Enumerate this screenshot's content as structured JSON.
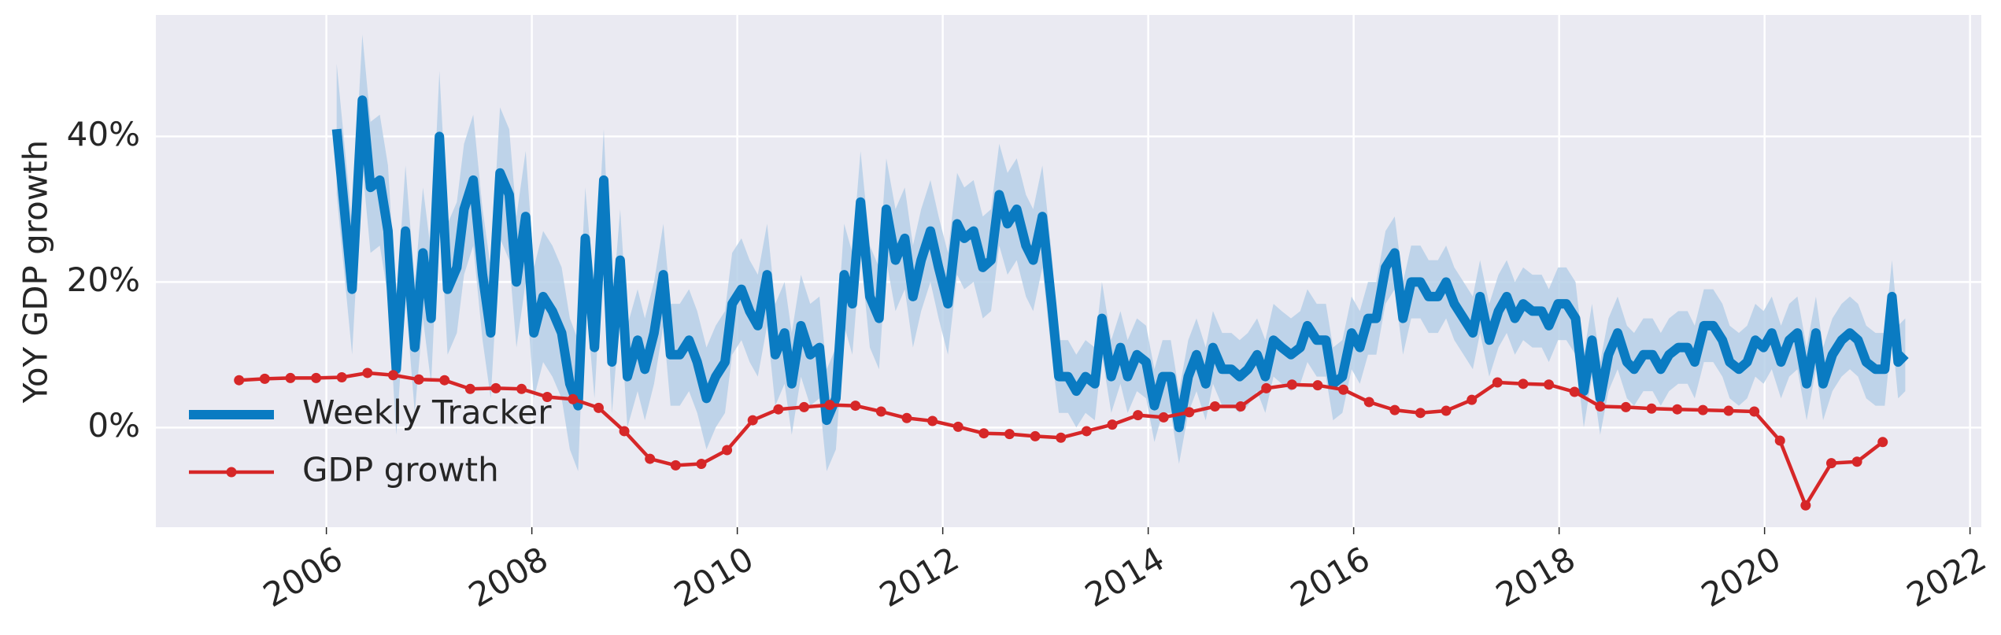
{
  "chart_data": {
    "type": "line",
    "ylabel": "YoY GDP growth",
    "xlim": [
      2004.34,
      2022.11
    ],
    "ylim": [
      -13.7,
      56.7
    ],
    "xticks": [
      2006,
      2008,
      2010,
      2012,
      2014,
      2016,
      2018,
      2020,
      2022
    ],
    "yticks": [
      {
        "value": 0,
        "label": "0%"
      },
      {
        "value": 20,
        "label": "20%"
      },
      {
        "value": 40,
        "label": "40%"
      }
    ],
    "grid": true,
    "legend": "lower left",
    "series": [
      {
        "name": "Weekly Tracker",
        "color": "#0a7bc2",
        "band_color": "#b3cde6",
        "x": [
          2006.1,
          2006.25,
          2006.35,
          2006.43,
          2006.52,
          2006.6,
          2006.68,
          2006.77,
          2006.86,
          2006.94,
          2007.02,
          2007.1,
          2007.18,
          2007.27,
          2007.34,
          2007.43,
          2007.52,
          2007.6,
          2007.69,
          2007.78,
          2007.85,
          2007.94,
          2008.02,
          2008.11,
          2008.2,
          2008.29,
          2008.37,
          2008.45,
          2008.52,
          2008.61,
          2008.7,
          2008.78,
          2008.86,
          2008.93,
          2009.03,
          2009.1,
          2009.19,
          2009.28,
          2009.35,
          2009.44,
          2009.53,
          2009.61,
          2009.7,
          2009.79,
          2009.88,
          2009.95,
          2010.04,
          2010.12,
          2010.2,
          2010.29,
          2010.37,
          2010.46,
          2010.53,
          2010.62,
          2010.71,
          2010.8,
          2010.87,
          2010.96,
          2011.04,
          2011.12,
          2011.2,
          2011.29,
          2011.38,
          2011.45,
          2011.54,
          2011.63,
          2011.71,
          2011.79,
          2011.88,
          2011.96,
          2012.05,
          2012.14,
          2012.21,
          2012.3,
          2012.39,
          2012.47,
          2012.55,
          2012.63,
          2012.72,
          2012.81,
          2012.88,
          2012.97,
          2013.06,
          2013.13,
          2013.22,
          2013.3,
          2013.39,
          2013.48,
          2013.55,
          2013.64,
          2013.73,
          2013.8,
          2013.89,
          2013.98,
          2014.06,
          2014.14,
          2014.22,
          2014.3,
          2014.39,
          2014.47,
          2014.56,
          2014.63,
          2014.72,
          2014.81,
          2014.89,
          2014.97,
          2015.06,
          2015.14,
          2015.22,
          2015.3,
          2015.39,
          2015.48,
          2015.55,
          2015.64,
          2015.73,
          2015.8,
          2015.89,
          2015.98,
          2016.06,
          2016.14,
          2016.22,
          2016.31,
          2016.4,
          2016.48,
          2016.56,
          2016.65,
          2016.73,
          2016.82,
          2016.9,
          2016.98,
          2017.07,
          2017.16,
          2017.23,
          2017.32,
          2017.41,
          2017.49,
          2017.57,
          2017.65,
          2017.74,
          2017.83,
          2017.9,
          2017.99,
          2018.07,
          2018.16,
          2018.24,
          2018.32,
          2018.4,
          2018.48,
          2018.57,
          2018.66,
          2018.73,
          2018.82,
          2018.91,
          2018.99,
          2019.07,
          2019.16,
          2019.25,
          2019.32,
          2019.41,
          2019.5,
          2019.59,
          2019.66,
          2019.75,
          2019.83,
          2019.91,
          2019.99,
          2020.07,
          2020.16,
          2020.24,
          2020.32,
          2020.41,
          2020.5,
          2020.57,
          2020.66,
          2020.75,
          2020.83,
          2020.91,
          2020.99,
          2021.08,
          2021.17,
          2021.24,
          2021.3,
          2021.37
        ],
        "values": [
          41,
          19,
          45,
          33,
          34,
          27,
          8,
          27,
          11,
          24,
          15,
          40,
          19,
          22,
          30,
          34,
          21,
          13,
          35,
          32,
          20,
          29,
          13,
          18,
          16,
          13,
          6,
          3,
          26,
          11,
          34,
          9,
          23,
          7,
          12,
          8,
          13,
          21,
          10,
          10,
          12,
          9,
          4,
          7,
          9,
          17,
          19,
          16,
          14,
          21,
          10,
          13,
          6,
          14,
          10,
          11,
          1,
          4,
          21,
          17,
          31,
          18,
          15,
          30,
          23,
          26,
          18,
          23,
          27,
          22,
          17,
          28,
          26,
          27,
          22,
          23,
          32,
          28,
          30,
          25,
          23,
          29,
          17,
          7,
          7,
          5,
          7,
          6,
          15,
          7,
          11,
          7,
          10,
          9,
          3,
          7,
          7,
          0,
          7,
          10,
          6,
          11,
          8,
          8,
          7,
          8,
          10,
          7,
          12,
          11,
          10,
          11,
          14,
          12,
          12,
          6,
          7,
          13,
          11,
          15,
          15,
          22,
          24,
          15,
          20,
          20,
          18,
          18,
          20,
          17,
          15,
          13,
          18,
          12,
          16,
          18,
          15,
          17,
          16,
          16,
          14,
          17,
          17,
          15,
          5,
          12,
          4,
          10,
          13,
          9,
          8,
          10,
          10,
          8,
          10,
          11,
          11,
          9,
          14,
          14,
          12,
          9,
          8,
          9,
          12,
          11,
          13,
          9,
          12,
          13,
          6,
          13,
          6,
          10,
          12,
          13,
          12,
          9,
          8,
          8,
          18,
          9,
          10
        ],
        "lower": [
          32,
          10,
          36,
          24,
          25,
          18,
          -1,
          18,
          2,
          15,
          6,
          31,
          10,
          13,
          21,
          25,
          12,
          4,
          26,
          23,
          11,
          20,
          4,
          9,
          7,
          4,
          -3,
          -6,
          19,
          4,
          27,
          2,
          16,
          0,
          5,
          1,
          6,
          14,
          3,
          3,
          5,
          2,
          -3,
          0,
          2,
          10,
          12,
          9,
          7,
          14,
          3,
          6,
          -1,
          7,
          3,
          4,
          -6,
          -3,
          14,
          10,
          24,
          11,
          8,
          23,
          16,
          19,
          11,
          16,
          20,
          15,
          10,
          21,
          19,
          20,
          15,
          16,
          25,
          21,
          23,
          18,
          16,
          22,
          10,
          2,
          2,
          0,
          2,
          1,
          10,
          2,
          6,
          2,
          5,
          4,
          -2,
          2,
          2,
          -5,
          2,
          5,
          1,
          6,
          3,
          3,
          2,
          3,
          5,
          2,
          7,
          6,
          5,
          6,
          9,
          7,
          7,
          1,
          2,
          8,
          6,
          10,
          10,
          17,
          19,
          10,
          15,
          15,
          13,
          13,
          15,
          12,
          10,
          8,
          13,
          7,
          11,
          13,
          10,
          12,
          11,
          11,
          9,
          12,
          12,
          10,
          0,
          7,
          -1,
          5,
          8,
          4,
          3,
          5,
          5,
          3,
          5,
          6,
          6,
          4,
          9,
          9,
          7,
          4,
          3,
          4,
          7,
          6,
          8,
          4,
          7,
          8,
          1,
          8,
          1,
          5,
          7,
          8,
          7,
          4,
          3,
          3,
          13,
          4,
          5
        ],
        "upper": [
          50,
          28,
          54,
          42,
          43,
          36,
          17,
          36,
          20,
          33,
          24,
          49,
          28,
          31,
          39,
          43,
          30,
          22,
          44,
          41,
          29,
          38,
          22,
          27,
          25,
          22,
          15,
          12,
          33,
          18,
          41,
          16,
          30,
          14,
          19,
          15,
          20,
          28,
          17,
          17,
          19,
          16,
          11,
          14,
          16,
          24,
          26,
          23,
          21,
          28,
          17,
          20,
          13,
          21,
          17,
          18,
          8,
          11,
          28,
          24,
          38,
          25,
          22,
          37,
          30,
          33,
          25,
          30,
          34,
          29,
          24,
          35,
          33,
          34,
          29,
          30,
          39,
          35,
          37,
          32,
          30,
          36,
          24,
          12,
          12,
          10,
          12,
          11,
          20,
          12,
          16,
          12,
          15,
          14,
          8,
          12,
          12,
          5,
          12,
          15,
          11,
          16,
          13,
          13,
          12,
          13,
          15,
          12,
          17,
          16,
          15,
          16,
          19,
          17,
          17,
          11,
          12,
          18,
          16,
          20,
          20,
          27,
          29,
          20,
          25,
          25,
          23,
          23,
          25,
          22,
          20,
          18,
          23,
          17,
          21,
          23,
          20,
          22,
          21,
          21,
          19,
          22,
          22,
          20,
          10,
          17,
          9,
          15,
          18,
          14,
          13,
          15,
          15,
          13,
          15,
          16,
          16,
          14,
          19,
          19,
          17,
          14,
          13,
          14,
          17,
          16,
          18,
          14,
          17,
          18,
          11,
          18,
          11,
          15,
          17,
          18,
          17,
          14,
          13,
          13,
          23,
          14,
          15
        ]
      },
      {
        "name": "GDP growth",
        "color": "#d62728",
        "marker": true,
        "x": [
          2005.15,
          2005.4,
          2005.65,
          2005.9,
          2006.15,
          2006.4,
          2006.65,
          2006.9,
          2007.15,
          2007.4,
          2007.65,
          2007.9,
          2008.15,
          2008.4,
          2008.65,
          2008.9,
          2009.15,
          2009.4,
          2009.65,
          2009.9,
          2010.15,
          2010.4,
          2010.65,
          2010.9,
          2011.15,
          2011.4,
          2011.65,
          2011.9,
          2012.15,
          2012.4,
          2012.65,
          2012.9,
          2013.15,
          2013.4,
          2013.65,
          2013.9,
          2014.15,
          2014.4,
          2014.65,
          2014.9,
          2015.15,
          2015.4,
          2015.65,
          2015.9,
          2016.15,
          2016.4,
          2016.65,
          2016.9,
          2017.15,
          2017.4,
          2017.65,
          2017.9,
          2018.15,
          2018.4,
          2018.65,
          2018.9,
          2019.15,
          2019.4,
          2019.65,
          2019.9,
          2020.15,
          2020.4,
          2020.65,
          2020.9,
          2021.15
        ],
        "values": [
          6.5,
          6.7,
          6.8,
          6.8,
          6.9,
          7.5,
          7.2,
          6.6,
          6.5,
          5.3,
          5.4,
          5.3,
          4.2,
          3.9,
          2.7,
          -0.5,
          -4.3,
          -5.2,
          -5.0,
          -3.1,
          1.0,
          2.5,
          2.8,
          3.1,
          3.0,
          2.2,
          1.3,
          0.9,
          0.1,
          -0.8,
          -0.9,
          -1.2,
          -1.4,
          -0.5,
          0.4,
          1.7,
          1.4,
          2.1,
          2.9,
          2.9,
          5.4,
          5.9,
          5.8,
          5.2,
          3.5,
          2.4,
          2.0,
          2.3,
          3.8,
          6.2,
          6.0,
          5.9,
          4.9,
          2.9,
          2.8,
          2.6,
          2.5,
          2.4,
          2.3,
          2.2,
          -1.8,
          -10.7,
          -4.9,
          -4.7,
          -2.0
        ]
      }
    ]
  }
}
